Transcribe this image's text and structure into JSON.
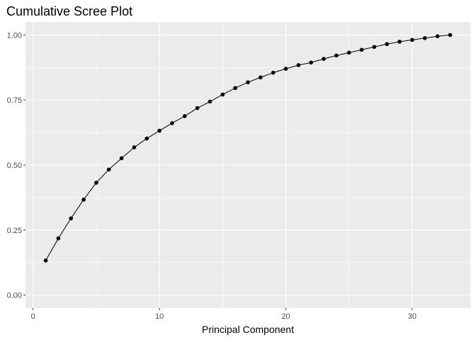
{
  "chart_data": {
    "type": "line",
    "title": "Cumulative Scree Plot",
    "xlabel": "Principal Component",
    "ylabel": "",
    "xlim": [
      -0.6,
      34.6
    ],
    "ylim": [
      -0.05,
      1.05
    ],
    "x_ticks": [
      0,
      10,
      20,
      30
    ],
    "x_tick_labels": [
      "0",
      "10",
      "20",
      "30"
    ],
    "y_ticks": [
      0,
      0.25,
      0.5,
      0.75,
      1
    ],
    "y_tick_labels": [
      "0.00",
      "0.25",
      "0.50",
      "0.75",
      "1.00"
    ],
    "grid": true,
    "panel_background": "#ebebeb",
    "grid_color": "#ffffff",
    "series": [
      {
        "color": "#000000",
        "x": [
          1,
          2,
          3,
          4,
          5,
          6,
          7,
          8,
          9,
          10,
          11,
          12,
          13,
          14,
          15,
          16,
          17,
          18,
          19,
          20,
          21,
          22,
          23,
          24,
          25,
          26,
          27,
          28,
          29,
          30,
          31,
          32,
          33
        ],
        "values": [
          0.133,
          0.218,
          0.295,
          0.367,
          0.432,
          0.483,
          0.526,
          0.568,
          0.602,
          0.632,
          0.661,
          0.688,
          0.719,
          0.744,
          0.771,
          0.796,
          0.818,
          0.837,
          0.855,
          0.87,
          0.884,
          0.894,
          0.908,
          0.921,
          0.932,
          0.943,
          0.954,
          0.965,
          0.974,
          0.981,
          0.988,
          0.995,
          1.0
        ]
      }
    ]
  }
}
